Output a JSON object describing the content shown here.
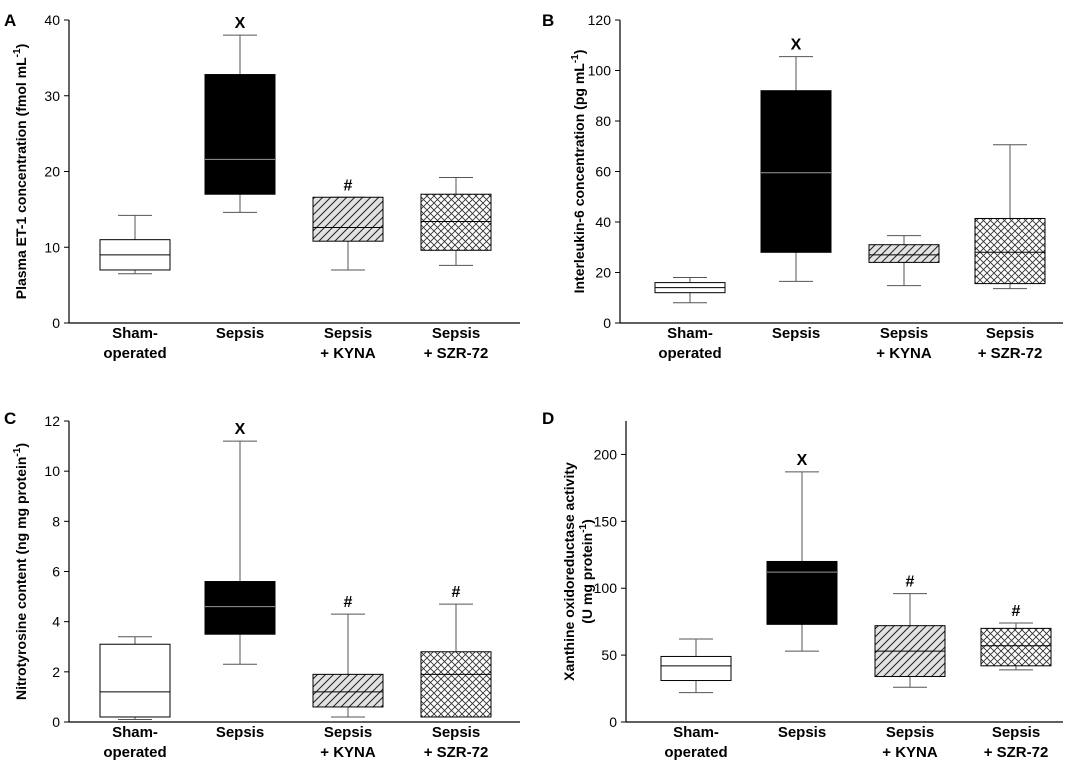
{
  "chart_data": [
    {
      "panel": "A",
      "type": "box",
      "ylabel": "Plasma ET-1 concentration (fmol mL",
      "ylabel_sup": "-1",
      "ylabel_tail": ")",
      "ylim": [
        0,
        40
      ],
      "yticks": [
        0,
        10,
        20,
        30,
        40
      ],
      "categories": [
        {
          "line1": "Sham-",
          "line2": "operated"
        },
        {
          "line1": "Sepsis",
          "line2": ""
        },
        {
          "line1": "Sepsis",
          "line2": "+ KYNA"
        },
        {
          "line1": "Sepsis",
          "line2": "+ SZR-72"
        }
      ],
      "boxes": [
        {
          "whisker_low": 6.5,
          "q1": 7.0,
          "median": 9.0,
          "q3": 11.0,
          "whisker_high": 14.2,
          "style": "open",
          "marker": ""
        },
        {
          "whisker_low": 14.6,
          "q1": 17.0,
          "median": 21.6,
          "q3": 32.8,
          "whisker_high": 38.0,
          "style": "solid",
          "marker": "X"
        },
        {
          "whisker_low": 7.0,
          "q1": 10.8,
          "median": 12.6,
          "q3": 16.6,
          "whisker_high": 16.6,
          "style": "diagonal",
          "marker": "#"
        },
        {
          "whisker_low": 7.6,
          "q1": 9.6,
          "median": 13.4,
          "q3": 17.0,
          "whisker_high": 19.2,
          "style": "crosshatch",
          "marker": ""
        }
      ]
    },
    {
      "panel": "B",
      "type": "box",
      "ylabel": "Interleukin-6 concentration  (pg mL",
      "ylabel_sup": "-1",
      "ylabel_tail": ")",
      "ylim": [
        0,
        120
      ],
      "yticks": [
        0,
        20,
        40,
        60,
        80,
        100,
        120
      ],
      "categories": [
        {
          "line1": "Sham-",
          "line2": "operated"
        },
        {
          "line1": "Sepsis",
          "line2": ""
        },
        {
          "line1": "Sepsis",
          "line2": "+ KYNA"
        },
        {
          "line1": "Sepsis",
          "line2": "+ SZR-72"
        }
      ],
      "boxes": [
        {
          "whisker_low": 8.0,
          "q1": 12.0,
          "median": 14.0,
          "q3": 16.0,
          "whisker_high": 18.0,
          "style": "open",
          "marker": ""
        },
        {
          "whisker_low": 16.5,
          "q1": 28.0,
          "median": 59.5,
          "q3": 92.0,
          "whisker_high": 105.5,
          "style": "solid",
          "marker": "X"
        },
        {
          "whisker_low": 14.8,
          "q1": 24.0,
          "median": 27.0,
          "q3": 31.0,
          "whisker_high": 34.6,
          "style": "diagonal",
          "marker": ""
        },
        {
          "whisker_low": 13.6,
          "q1": 15.6,
          "median": 28.0,
          "q3": 41.4,
          "whisker_high": 70.6,
          "style": "crosshatch",
          "marker": ""
        }
      ]
    },
    {
      "panel": "C",
      "type": "box",
      "ylabel": "Nitrotyrosine content (ng mg protein",
      "ylabel_sup": "-1",
      "ylabel_tail": ")",
      "ylim": [
        0,
        12
      ],
      "yticks": [
        0,
        2,
        4,
        6,
        8,
        10,
        12
      ],
      "categories": [
        {
          "line1": "Sham-",
          "line2": "operated"
        },
        {
          "line1": "Sepsis",
          "line2": ""
        },
        {
          "line1": "Sepsis",
          "line2": "+ KYNA"
        },
        {
          "line1": "Sepsis",
          "line2": "+ SZR-72"
        }
      ],
      "boxes": [
        {
          "whisker_low": 0.1,
          "q1": 0.2,
          "median": 1.2,
          "q3": 3.1,
          "whisker_high": 3.4,
          "style": "open",
          "marker": ""
        },
        {
          "whisker_low": 2.3,
          "q1": 3.5,
          "median": 4.6,
          "q3": 5.6,
          "whisker_high": 11.2,
          "style": "solid",
          "marker": "X"
        },
        {
          "whisker_low": 0.2,
          "q1": 0.6,
          "median": 1.2,
          "q3": 1.9,
          "whisker_high": 4.3,
          "style": "diagonal",
          "marker": "#"
        },
        {
          "whisker_low": 0.2,
          "q1": 0.2,
          "median": 1.9,
          "q3": 2.8,
          "whisker_high": 4.7,
          "style": "crosshatch",
          "marker": "#"
        }
      ]
    },
    {
      "panel": "D",
      "type": "box",
      "ylabel": "Xanthine oxidoreductase activity",
      "ylabel2": "(U mg protein",
      "ylabel_sup": "-1",
      "ylabel_tail": ")",
      "ylim": [
        0,
        225
      ],
      "yticks": [
        0,
        50,
        100,
        150,
        200
      ],
      "categories": [
        {
          "line1": "Sham-",
          "line2": "operated"
        },
        {
          "line1": "Sepsis",
          "line2": ""
        },
        {
          "line1": "Sepsis",
          "line2": "+ KYNA"
        },
        {
          "line1": "Sepsis",
          "line2": "+ SZR-72"
        }
      ],
      "boxes": [
        {
          "whisker_low": 22,
          "q1": 31,
          "median": 42,
          "q3": 49,
          "whisker_high": 62,
          "style": "open",
          "marker": ""
        },
        {
          "whisker_low": 53,
          "q1": 73,
          "median": 112,
          "q3": 120,
          "whisker_high": 187,
          "style": "solid",
          "marker": "X"
        },
        {
          "whisker_low": 26,
          "q1": 34,
          "median": 53,
          "q3": 72,
          "whisker_high": 96,
          "style": "diagonal",
          "marker": "#"
        },
        {
          "whisker_low": 39,
          "q1": 42,
          "median": 57,
          "q3": 70,
          "whisker_high": 74,
          "style": "crosshatch",
          "marker": "#"
        }
      ]
    }
  ]
}
